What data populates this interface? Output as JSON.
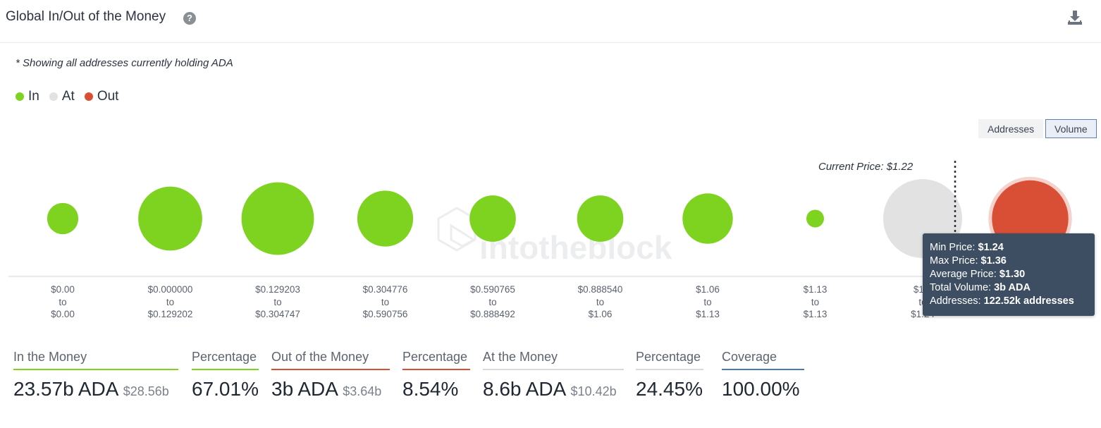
{
  "header": {
    "title": "Global In/Out of the Money"
  },
  "note": "* Showing all addresses currently holding ADA",
  "legend": [
    {
      "label": "In",
      "color": "#7ed321"
    },
    {
      "label": "At",
      "color": "#e2e2e2"
    },
    {
      "label": "Out",
      "color": "#d94f35"
    }
  ],
  "toggles": {
    "addresses": "Addresses",
    "volume": "Volume",
    "active": "Volume"
  },
  "current_price_label": "Current Price: $1.22",
  "watermark": "intotheblock",
  "chart_data": {
    "type": "bubble",
    "metric": "Volume",
    "current_price": 1.22,
    "buckets": [
      {
        "from": "$0.00",
        "to": "$0.00",
        "status": "In",
        "volume_b": 0.5
      },
      {
        "from": "$0.000000",
        "to": "$0.129202",
        "status": "In",
        "volume_b": 2.1
      },
      {
        "from": "$0.129203",
        "to": "$0.304747",
        "status": "In",
        "volume_b": 2.7
      },
      {
        "from": "$0.304776",
        "to": "$0.590756",
        "status": "In",
        "volume_b": 1.6
      },
      {
        "from": "$0.590765",
        "to": "$0.888492",
        "status": "In",
        "volume_b": 1.1
      },
      {
        "from": "$0.888540",
        "to": "$1.06",
        "status": "In",
        "volume_b": 1.1
      },
      {
        "from": "$1.06",
        "to": "$1.13",
        "status": "In",
        "volume_b": 1.3
      },
      {
        "from": "$1.13",
        "to": "$1.13",
        "status": "In",
        "volume_b": 0.16
      },
      {
        "from": "$1.1",
        "to": "$1.24",
        "status": "At",
        "volume_b": 3.2
      },
      {
        "from": "",
        "to": "$1.36",
        "status": "Out",
        "volume_b": 3.0
      }
    ]
  },
  "tooltip": {
    "min_label": "Min Price:",
    "min_value": "$1.24",
    "max_label": "Max Price:",
    "max_value": "$1.36",
    "avg_label": "Average Price:",
    "avg_value": "$1.30",
    "vol_label": "Total Volume:",
    "vol_value": "3b ADA",
    "addr_label": "Addresses:",
    "addr_value": "122.52k addresses"
  },
  "stats": {
    "in_label": "In the Money",
    "in_value": "23.57b ADA",
    "in_usd": "$28.56b",
    "in_pct_label": "Percentage",
    "in_pct": "67.01%",
    "out_label": "Out of the Money",
    "out_value": "3b ADA",
    "out_usd": "$3.64b",
    "out_pct_label": "Percentage",
    "out_pct": "8.54%",
    "at_label": "At the Money",
    "at_value": "8.6b ADA",
    "at_usd": "$10.42b",
    "at_pct_label": "Percentage",
    "at_pct": "24.45%",
    "cov_label": "Coverage",
    "cov_value": "100.00%"
  },
  "colors": {
    "in": "#7ed321",
    "at": "#e2e2e2",
    "out": "#d94f35",
    "coverage": "#4a78b5"
  }
}
